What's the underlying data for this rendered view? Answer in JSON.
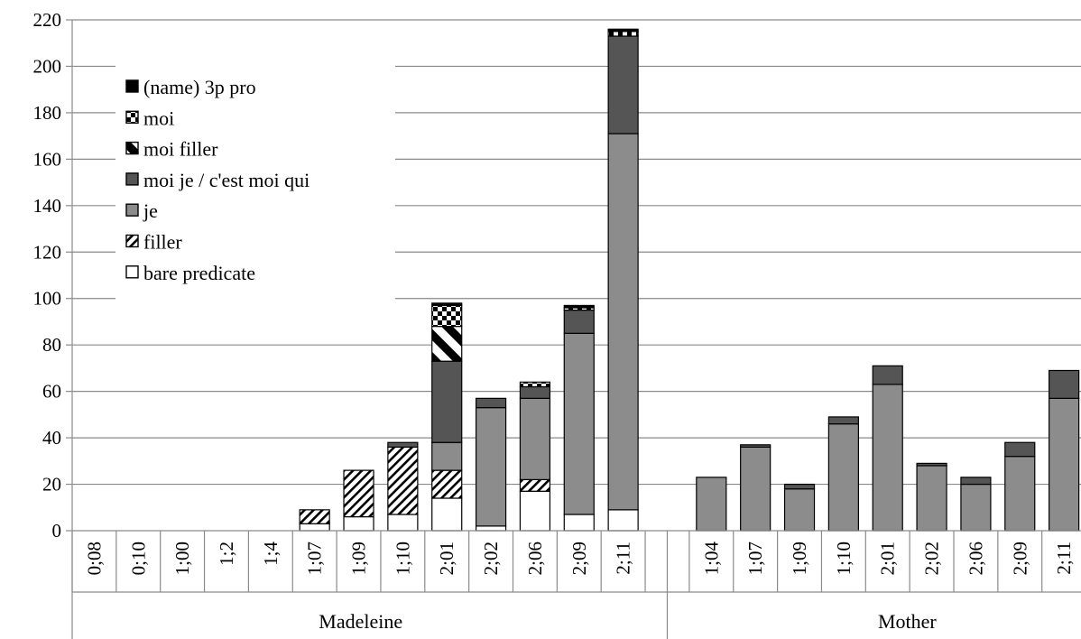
{
  "chart_data": {
    "type": "bar",
    "stacked": true,
    "title": "",
    "xlabel": "",
    "ylabel": "",
    "ylim": [
      0,
      220
    ],
    "yticks": [
      0,
      20,
      40,
      60,
      80,
      100,
      120,
      140,
      160,
      180,
      200,
      220
    ],
    "grid": true,
    "legend_position": "top-left",
    "groups": [
      {
        "name": "Madeleine",
        "categories": [
          "0;08",
          "0;10",
          "1;00",
          "1;2",
          "1;4",
          "1;07",
          "1;09",
          "1;10",
          "2;01",
          "2;02",
          "2;06",
          "2;09",
          "2;11"
        ]
      },
      {
        "name": "Mother",
        "categories": [
          "1;04",
          "1;07",
          "1;09",
          "1;10",
          "2;01",
          "2;02",
          "2;06",
          "2;09",
          "2;11"
        ]
      }
    ],
    "series": [
      {
        "name": "bare predicate",
        "pattern": "white",
        "values": [
          0,
          0,
          0,
          0,
          0,
          3,
          6,
          7,
          14,
          2,
          17,
          7,
          9,
          0,
          0,
          0,
          0,
          0,
          0,
          0,
          0,
          0
        ]
      },
      {
        "name": "filler",
        "pattern": "diagonal-hatch",
        "values": [
          0,
          0,
          0,
          0,
          0,
          6,
          20,
          29,
          12,
          0,
          5,
          0,
          0,
          0,
          0,
          0,
          0,
          0,
          0,
          0,
          0,
          0
        ]
      },
      {
        "name": "je",
        "pattern": "gray",
        "values": [
          0,
          0,
          0,
          0,
          0,
          0,
          0,
          0,
          12,
          51,
          35,
          78,
          162,
          23,
          36,
          18,
          46,
          63,
          28,
          20,
          32,
          57
        ]
      },
      {
        "name": "moi je / c'est moi qui",
        "pattern": "dark-gray",
        "values": [
          0,
          0,
          0,
          0,
          0,
          0,
          0,
          2,
          35,
          4,
          5,
          10,
          42,
          0,
          1,
          2,
          3,
          8,
          1,
          3,
          6,
          12
        ]
      },
      {
        "name": "moi filler",
        "pattern": "bold-stripe",
        "values": [
          0,
          0,
          0,
          0,
          0,
          0,
          0,
          0,
          15,
          0,
          0,
          0,
          0,
          0,
          0,
          0,
          0,
          0,
          0,
          0,
          0,
          0
        ]
      },
      {
        "name": "moi",
        "pattern": "checker",
        "values": [
          0,
          0,
          0,
          0,
          0,
          0,
          0,
          0,
          9,
          0,
          2,
          1,
          2,
          0,
          0,
          0,
          0,
          0,
          0,
          0,
          0,
          0
        ]
      },
      {
        "name": "(name) 3p pro",
        "pattern": "black",
        "values": [
          0,
          0,
          0,
          0,
          0,
          0,
          0,
          0,
          1,
          0,
          0,
          1,
          1,
          0,
          0,
          0,
          0,
          0,
          0,
          0,
          0,
          0
        ]
      }
    ],
    "legend_order": [
      "(name) 3p pro",
      "moi",
      "moi filler",
      "moi je / c'est moi qui",
      "je",
      "filler",
      "bare predicate"
    ]
  }
}
